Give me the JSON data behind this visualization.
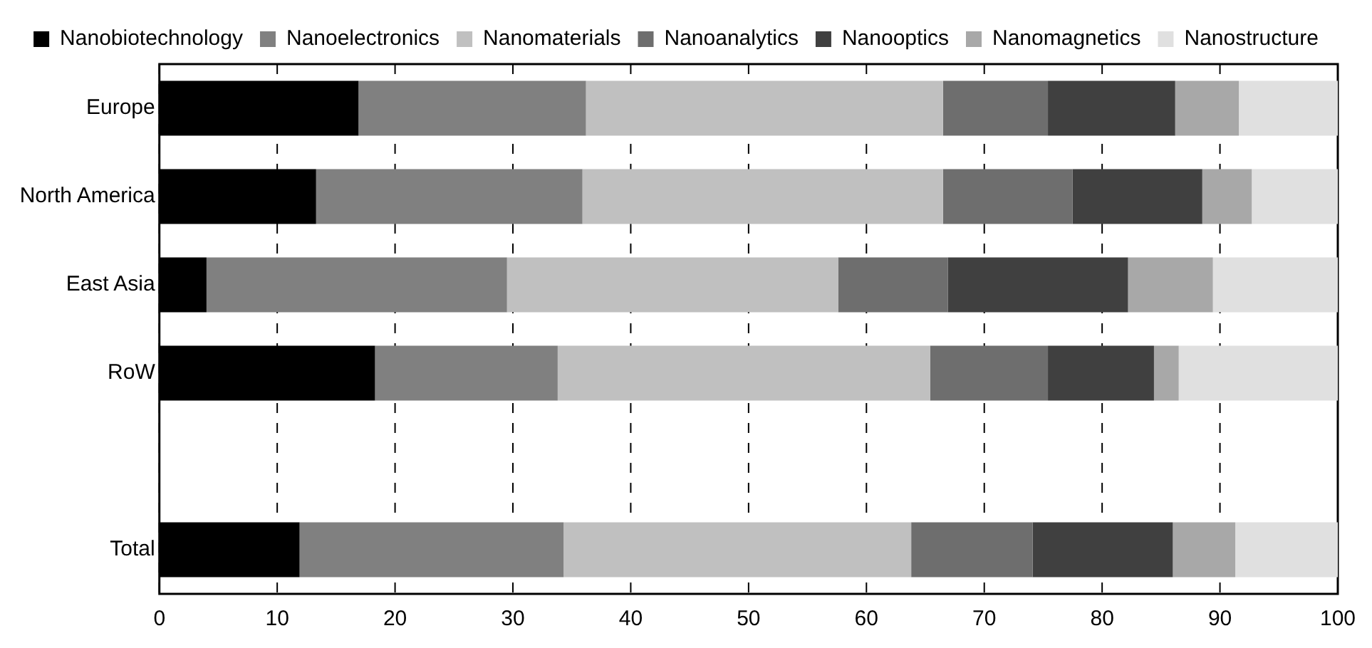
{
  "chart_data": {
    "type": "bar",
    "orientation": "horizontal",
    "stacked": true,
    "categories": [
      "Europe",
      "North America",
      "East Asia",
      "RoW",
      null,
      "Total"
    ],
    "series": [
      {
        "name": "Nanobiotechnology",
        "color": "#000000",
        "values": [
          16.9,
          13.3,
          4.0,
          18.3,
          null,
          11.9
        ]
      },
      {
        "name": "Nanoelectronics",
        "color": "#808080",
        "values": [
          19.3,
          22.6,
          25.5,
          15.5,
          null,
          22.4
        ]
      },
      {
        "name": "Nanomaterials",
        "color": "#c0c0c0",
        "values": [
          30.3,
          30.6,
          28.1,
          31.6,
          null,
          29.5
        ]
      },
      {
        "name": "Nanoanalytics",
        "color": "#6e6e6e",
        "values": [
          8.9,
          11.0,
          9.3,
          10.0,
          null,
          10.3
        ]
      },
      {
        "name": "Nanooptics",
        "color": "#404040",
        "values": [
          10.8,
          11.0,
          15.3,
          9.0,
          null,
          11.9
        ]
      },
      {
        "name": "Nanomagnetics",
        "color": "#a8a8a8",
        "values": [
          5.4,
          4.2,
          7.2,
          2.1,
          null,
          5.3
        ]
      },
      {
        "name": "Nanostructure",
        "color": "#e0e0e0",
        "values": [
          8.4,
          7.3,
          10.6,
          13.5,
          null,
          8.7
        ]
      }
    ],
    "xlim": [
      0,
      100
    ],
    "xticks": [
      0,
      10,
      20,
      30,
      40,
      50,
      60,
      70,
      80,
      90,
      100
    ],
    "grid": "x",
    "legend": "top"
  }
}
